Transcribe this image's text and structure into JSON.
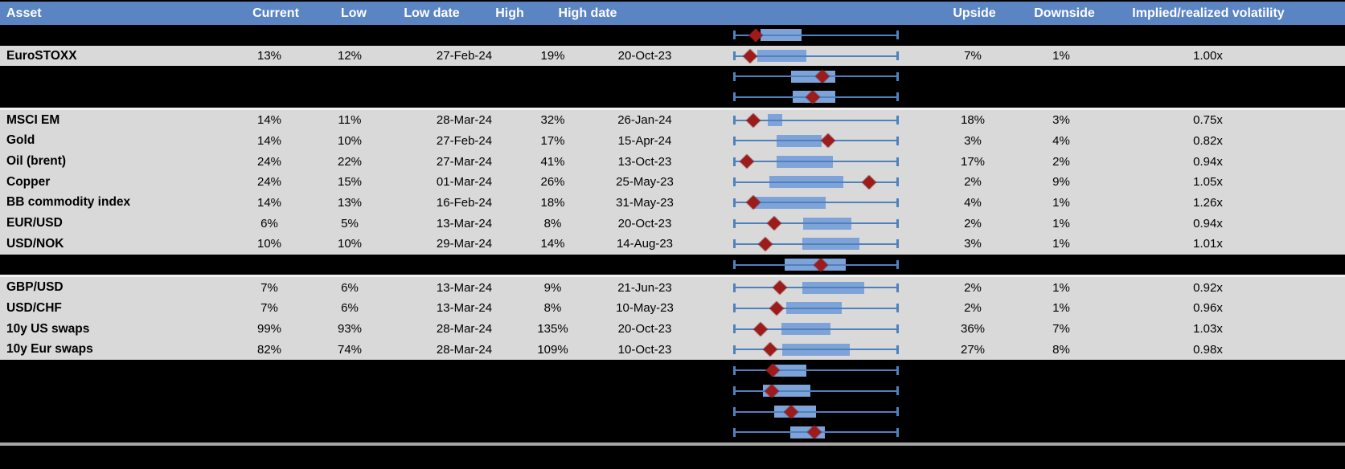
{
  "colors": {
    "header_bg": "#5B84C3",
    "header_text": "#FFFFFF",
    "row_bg": "#D9D9D9",
    "band_bg": "#000000",
    "whisker": "#4F81BD",
    "box_fill": "#7DA3D8",
    "marker": "#9E1B1B",
    "separator": "#F0F0F0",
    "bottom_line": "#A6A6A6"
  },
  "table": {
    "columns": {
      "asset": "Asset",
      "current": "Current",
      "low": "Low",
      "low_date": "Low date",
      "high": "High",
      "high_date": "High date",
      "upside": "Upside",
      "downside": "Downside",
      "vol": "Implied/realized volatility"
    },
    "rows": [
      {
        "type": "chart",
        "box": [
          0.163,
          0.412
        ],
        "marker": 0.134
      },
      {
        "type": "data",
        "asset": "EuroSTOXX",
        "current": "13%",
        "low": "12%",
        "low_date": "27-Feb-24",
        "high": "19%",
        "high_date": "20-Oct-23",
        "upside": "7%",
        "downside": "1%",
        "vol": "1.00x",
        "box": [
          0.142,
          0.443
        ],
        "marker": 0.098
      },
      {
        "type": "chart",
        "box": [
          0.346,
          0.619
        ],
        "marker": 0.539
      },
      {
        "type": "chart",
        "box": [
          0.357,
          0.619
        ],
        "marker": 0.48
      },
      {
        "type": "separator"
      },
      {
        "type": "data",
        "asset": "MSCI EM",
        "current": "14%",
        "low": "11%",
        "low_date": "28-Mar-24",
        "high": "32%",
        "high_date": "26-Jan-24",
        "upside": "18%",
        "downside": "3%",
        "vol": "0.75x",
        "box": [
          0.207,
          0.292
        ],
        "marker": 0.119
      },
      {
        "type": "data",
        "asset": "Gold",
        "current": "14%",
        "low": "10%",
        "low_date": "27-Feb-24",
        "high": "17%",
        "high_date": "15-Apr-24",
        "upside": "3%",
        "downside": "4%",
        "vol": "0.82x",
        "box": [
          0.261,
          0.534
        ],
        "marker": 0.572
      },
      {
        "type": "data",
        "asset": "Oil (brent)",
        "current": "24%",
        "low": "22%",
        "low_date": "27-Mar-24",
        "high": "41%",
        "high_date": "13-Oct-23",
        "upside": "17%",
        "downside": "2%",
        "vol": "0.94x",
        "box": [
          0.261,
          0.605
        ],
        "marker": 0.08
      },
      {
        "type": "data",
        "asset": "Copper",
        "current": "24%",
        "low": "15%",
        "low_date": "01-Mar-24",
        "high": "26%",
        "high_date": "25-May-23",
        "upside": "2%",
        "downside": "9%",
        "vol": "1.05x",
        "box": [
          0.216,
          0.668
        ],
        "marker": 0.824
      },
      {
        "type": "data",
        "asset": "BB commodity index",
        "current": "14%",
        "low": "13%",
        "low_date": "16-Feb-24",
        "high": "18%",
        "high_date": "31-May-23",
        "upside": "4%",
        "downside": "1%",
        "vol": "1.26x",
        "box": [
          0.123,
          0.559
        ],
        "marker": 0.116
      },
      {
        "type": "data",
        "asset": "EUR/USD",
        "current": "6%",
        "low": "5%",
        "low_date": "13-Mar-24",
        "high": "8%",
        "high_date": "20-Oct-23",
        "upside": "2%",
        "downside": "1%",
        "vol": "0.94x",
        "box": [
          0.42,
          0.717
        ],
        "marker": 0.243
      },
      {
        "type": "data",
        "asset": "USD/NOK",
        "current": "10%",
        "low": "10%",
        "low_date": "29-Mar-24",
        "high": "14%",
        "high_date": "14-Aug-23",
        "upside": "3%",
        "downside": "1%",
        "vol": "1.01x",
        "box": [
          0.415,
          0.763
        ],
        "marker": 0.193
      },
      {
        "type": "chart",
        "box": [
          0.31,
          0.681
        ],
        "marker": 0.531
      },
      {
        "type": "separator"
      },
      {
        "type": "data",
        "asset": "GBP/USD",
        "current": "7%",
        "low": "6%",
        "low_date": "13-Mar-24",
        "high": "9%",
        "high_date": "21-Jun-23",
        "upside": "2%",
        "downside": "1%",
        "vol": "0.92x",
        "box": [
          0.415,
          0.796
        ],
        "marker": 0.279
      },
      {
        "type": "data",
        "asset": "USD/CHF",
        "current": "7%",
        "low": "6%",
        "low_date": "13-Mar-24",
        "high": "8%",
        "high_date": "10-May-23",
        "upside": "2%",
        "downside": "1%",
        "vol": "0.96x",
        "box": [
          0.317,
          0.657
        ],
        "marker": 0.26
      },
      {
        "type": "data",
        "asset": "10y US swaps",
        "current": "99%",
        "low": "93%",
        "low_date": "28-Mar-24",
        "high": "135%",
        "high_date": "20-Oct-23",
        "upside": "36%",
        "downside": "7%",
        "vol": "1.03x",
        "box": [
          0.289,
          0.586
        ],
        "marker": 0.162
      },
      {
        "type": "data",
        "asset": "10y Eur swaps",
        "current": "82%",
        "low": "74%",
        "low_date": "28-Mar-24",
        "high": "109%",
        "high_date": "10-Oct-23",
        "upside": "27%",
        "downside": "8%",
        "vol": "0.98x",
        "box": [
          0.295,
          0.706
        ],
        "marker": 0.221
      },
      {
        "type": "chart",
        "box": [
          0.232,
          0.439
        ],
        "marker": 0.237
      },
      {
        "type": "chart",
        "box": [
          0.175,
          0.467
        ],
        "marker": 0.228
      },
      {
        "type": "chart",
        "box": [
          0.245,
          0.501
        ],
        "marker": 0.346
      },
      {
        "type": "chart",
        "box": [
          0.343,
          0.552
        ],
        "marker": 0.49
      }
    ]
  }
}
